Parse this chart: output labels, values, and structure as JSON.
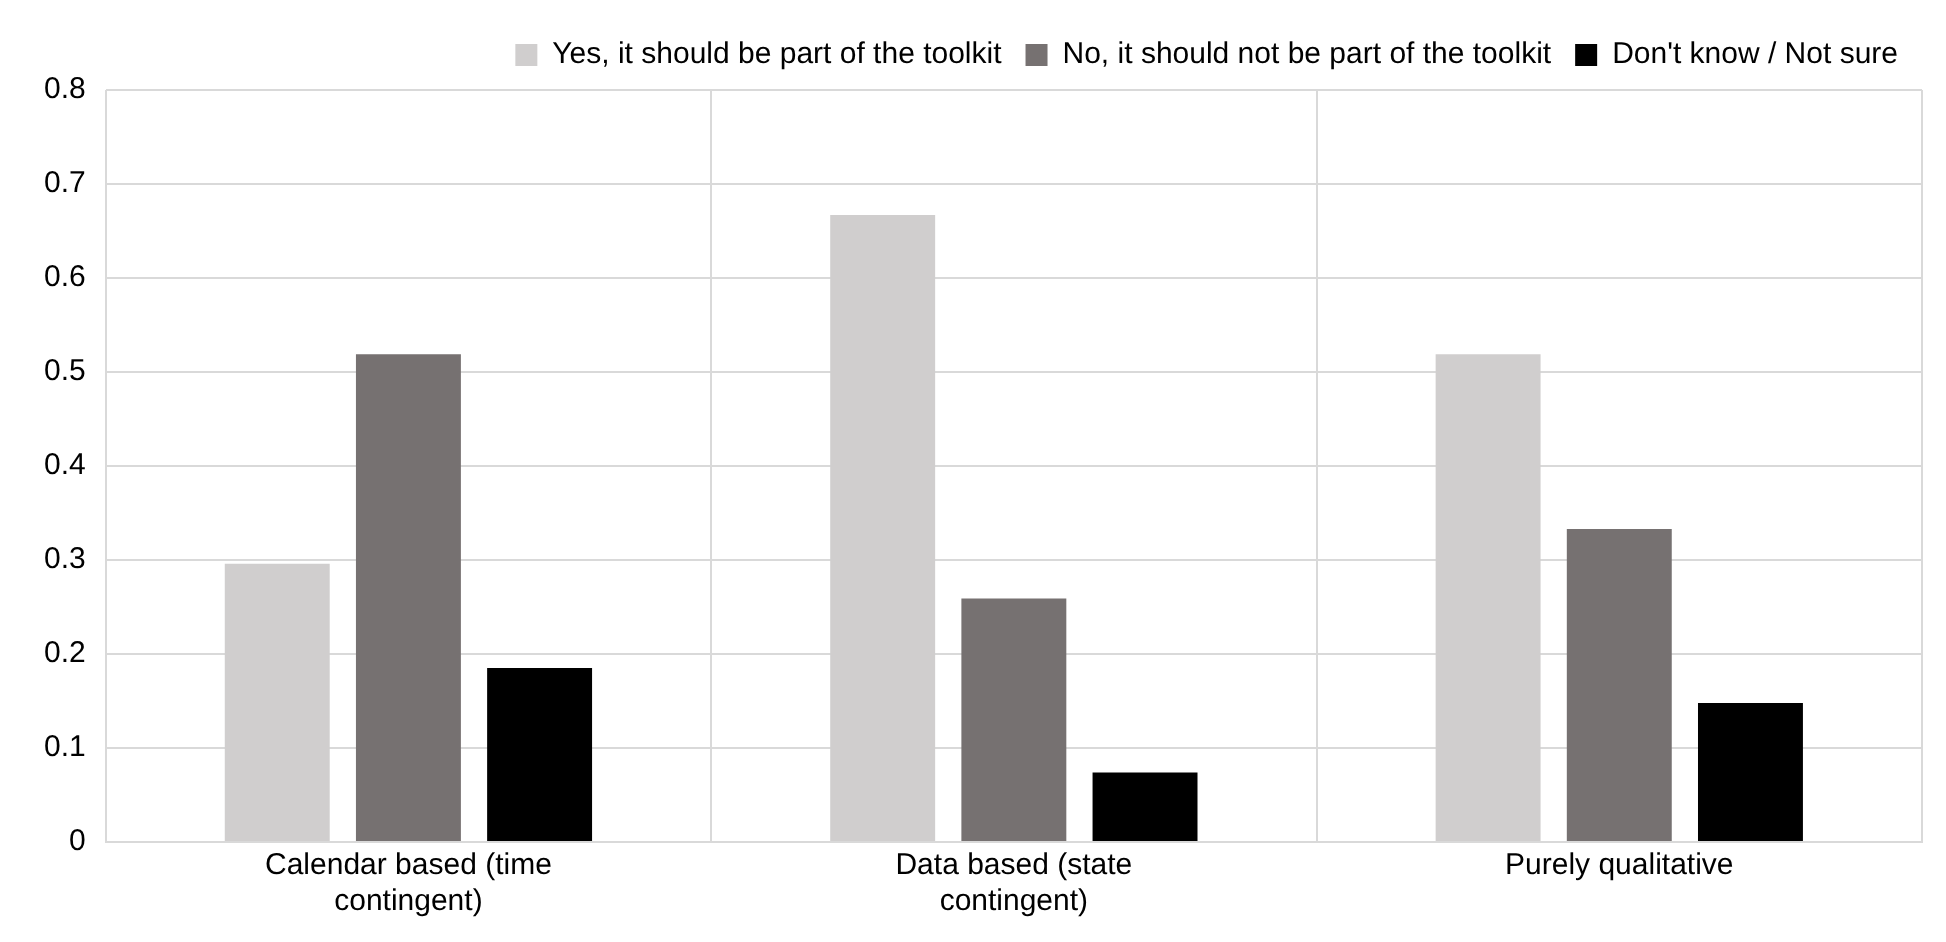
{
  "chart_data": {
    "type": "bar",
    "categories": [
      "Calendar based (time contingent)",
      "Data based (state contingent)",
      "Purely qualitative"
    ],
    "series": [
      {
        "name": "Yes, it should be part of the toolkit",
        "color": "#d0cece",
        "values": [
          0.296,
          0.667,
          0.519
        ]
      },
      {
        "name": "No, it should not be part of the toolkit",
        "color": "#767171",
        "values": [
          0.519,
          0.259,
          0.333
        ]
      },
      {
        "name": "Don't know / Not sure",
        "color": "#000000",
        "values": [
          0.185,
          0.074,
          0.148
        ]
      }
    ],
    "ylim": [
      0,
      0.8
    ],
    "yticks": [
      0,
      0.1,
      0.2,
      0.3,
      0.4,
      0.5,
      0.6,
      0.7,
      0.8
    ],
    "grid": true,
    "legend": "top"
  }
}
